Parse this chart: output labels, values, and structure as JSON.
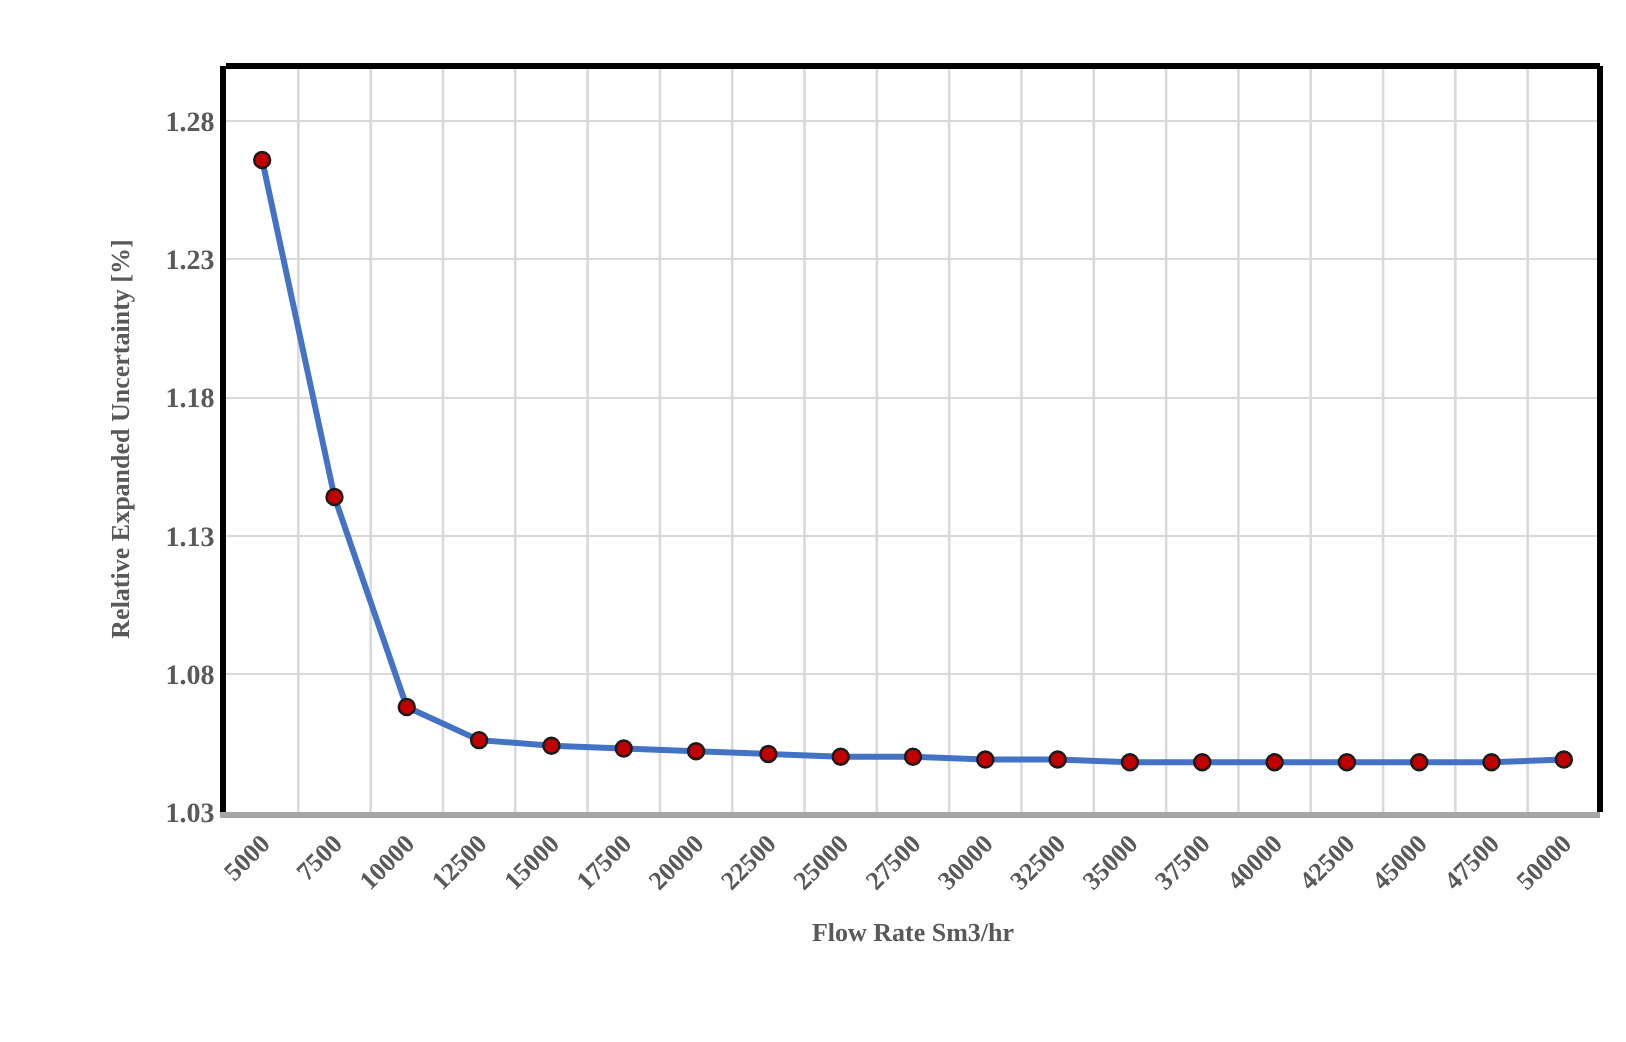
{
  "chart_data": {
    "type": "line",
    "xlabel": "Flow Rate Sm3/hr",
    "ylabel": "Relative Expanded Uncertainty [%]",
    "categories": [
      "5000",
      "7500",
      "10000",
      "12500",
      "15000",
      "17500",
      "20000",
      "22500",
      "25000",
      "27500",
      "30000",
      "32500",
      "35000",
      "37500",
      "40000",
      "42500",
      "45000",
      "47500",
      "50000"
    ],
    "series": [
      {
        "color": "#4472c4",
        "colors": [
          "#c00000",
          "#c00000",
          "#c00000",
          "#c00000",
          "#c00000",
          "#c00000",
          "#c00000",
          "#c00000",
          "#c00000",
          "#c00000",
          "#c00000",
          "#c00000",
          "#c00000",
          "#c00000",
          "#c00000",
          "#c00000",
          "#c00000",
          "#c00000",
          "#c00000"
        ],
        "values": [
          1.266,
          1.144,
          1.068,
          1.056,
          1.054,
          1.053,
          1.052,
          1.051,
          1.05,
          1.05,
          1.049,
          1.049,
          1.048,
          1.048,
          1.048,
          1.048,
          1.048,
          1.048,
          1.049
        ]
      }
    ],
    "ylim": [
      1.03,
      1.3
    ],
    "yticks": [
      1.03,
      1.08,
      1.13,
      1.18,
      1.23,
      1.28
    ],
    "grid": true,
    "marker": "circle",
    "line_style": "solid",
    "legend": false
  }
}
